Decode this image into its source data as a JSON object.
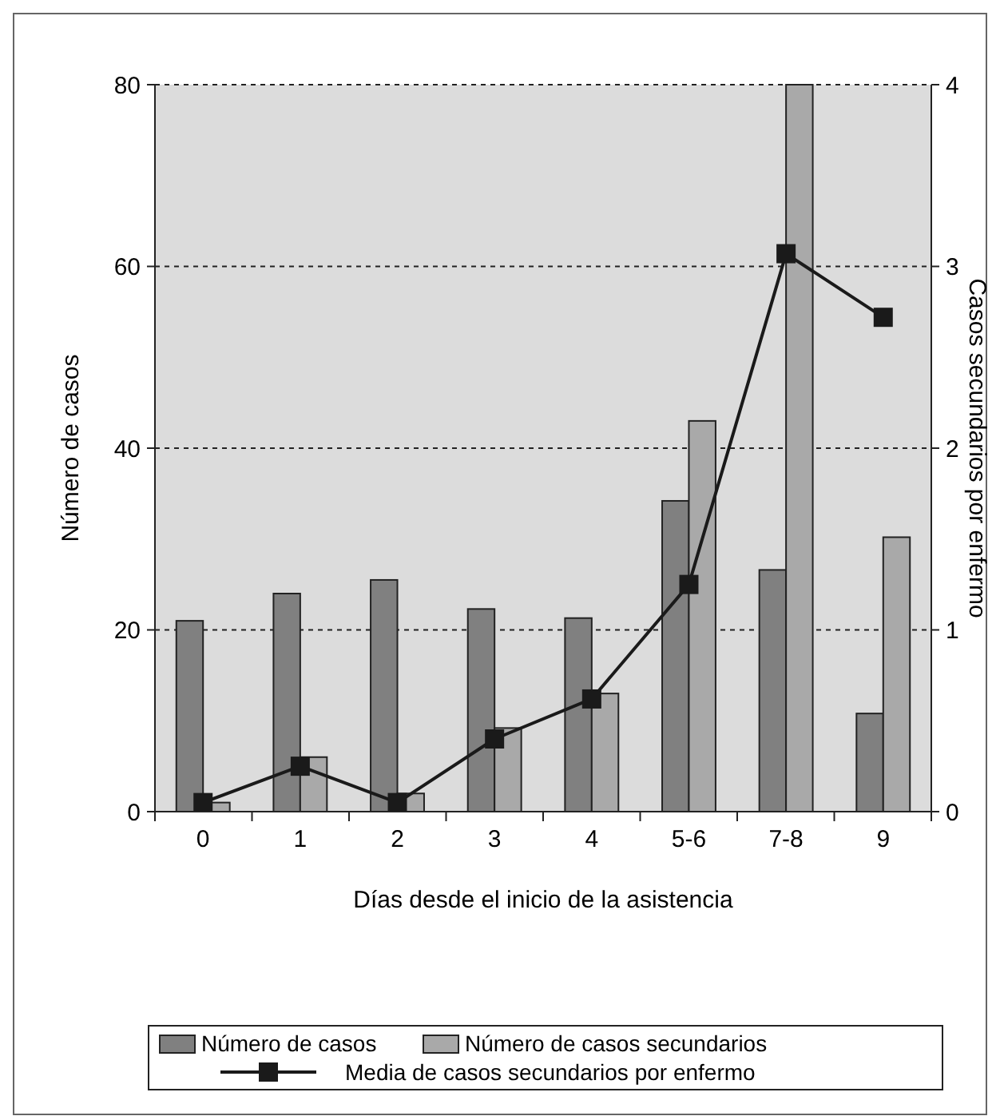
{
  "chart_data": {
    "type": "bar",
    "xlabel": "Días desde el inicio de la asistencia",
    "ylabel": "Número de casos",
    "y2label": "Casos secundarios por enfermo",
    "categories": [
      "0",
      "1",
      "2",
      "3",
      "4",
      "5-6",
      "7-8",
      "9"
    ],
    "series": [
      {
        "name": "Número de casos",
        "color": "#808080",
        "values": [
          21,
          24,
          25.5,
          22.3,
          21.3,
          34.2,
          26.6,
          10.8
        ]
      },
      {
        "name": "Número de casos secundarios",
        "color": "#a9a9a9",
        "values": [
          1,
          6,
          2,
          9.2,
          13,
          43,
          80,
          30.2
        ]
      },
      {
        "name": "Media de casos secundarios por enfermo",
        "type": "line",
        "axis": "y2",
        "color": "#1a1a1a",
        "marker": "square",
        "line_style": "solid",
        "values": [
          0.05,
          0.25,
          0.05,
          0.4,
          0.62,
          1.25,
          3.07,
          2.72
        ]
      }
    ],
    "ylim": [
      0,
      80
    ],
    "yticks": [
      0,
      20,
      40,
      60,
      80
    ],
    "y2lim": [
      0,
      4
    ],
    "y2ticks": [
      0,
      1,
      2,
      3,
      4
    ],
    "grid": "y",
    "legend": "bottom"
  }
}
